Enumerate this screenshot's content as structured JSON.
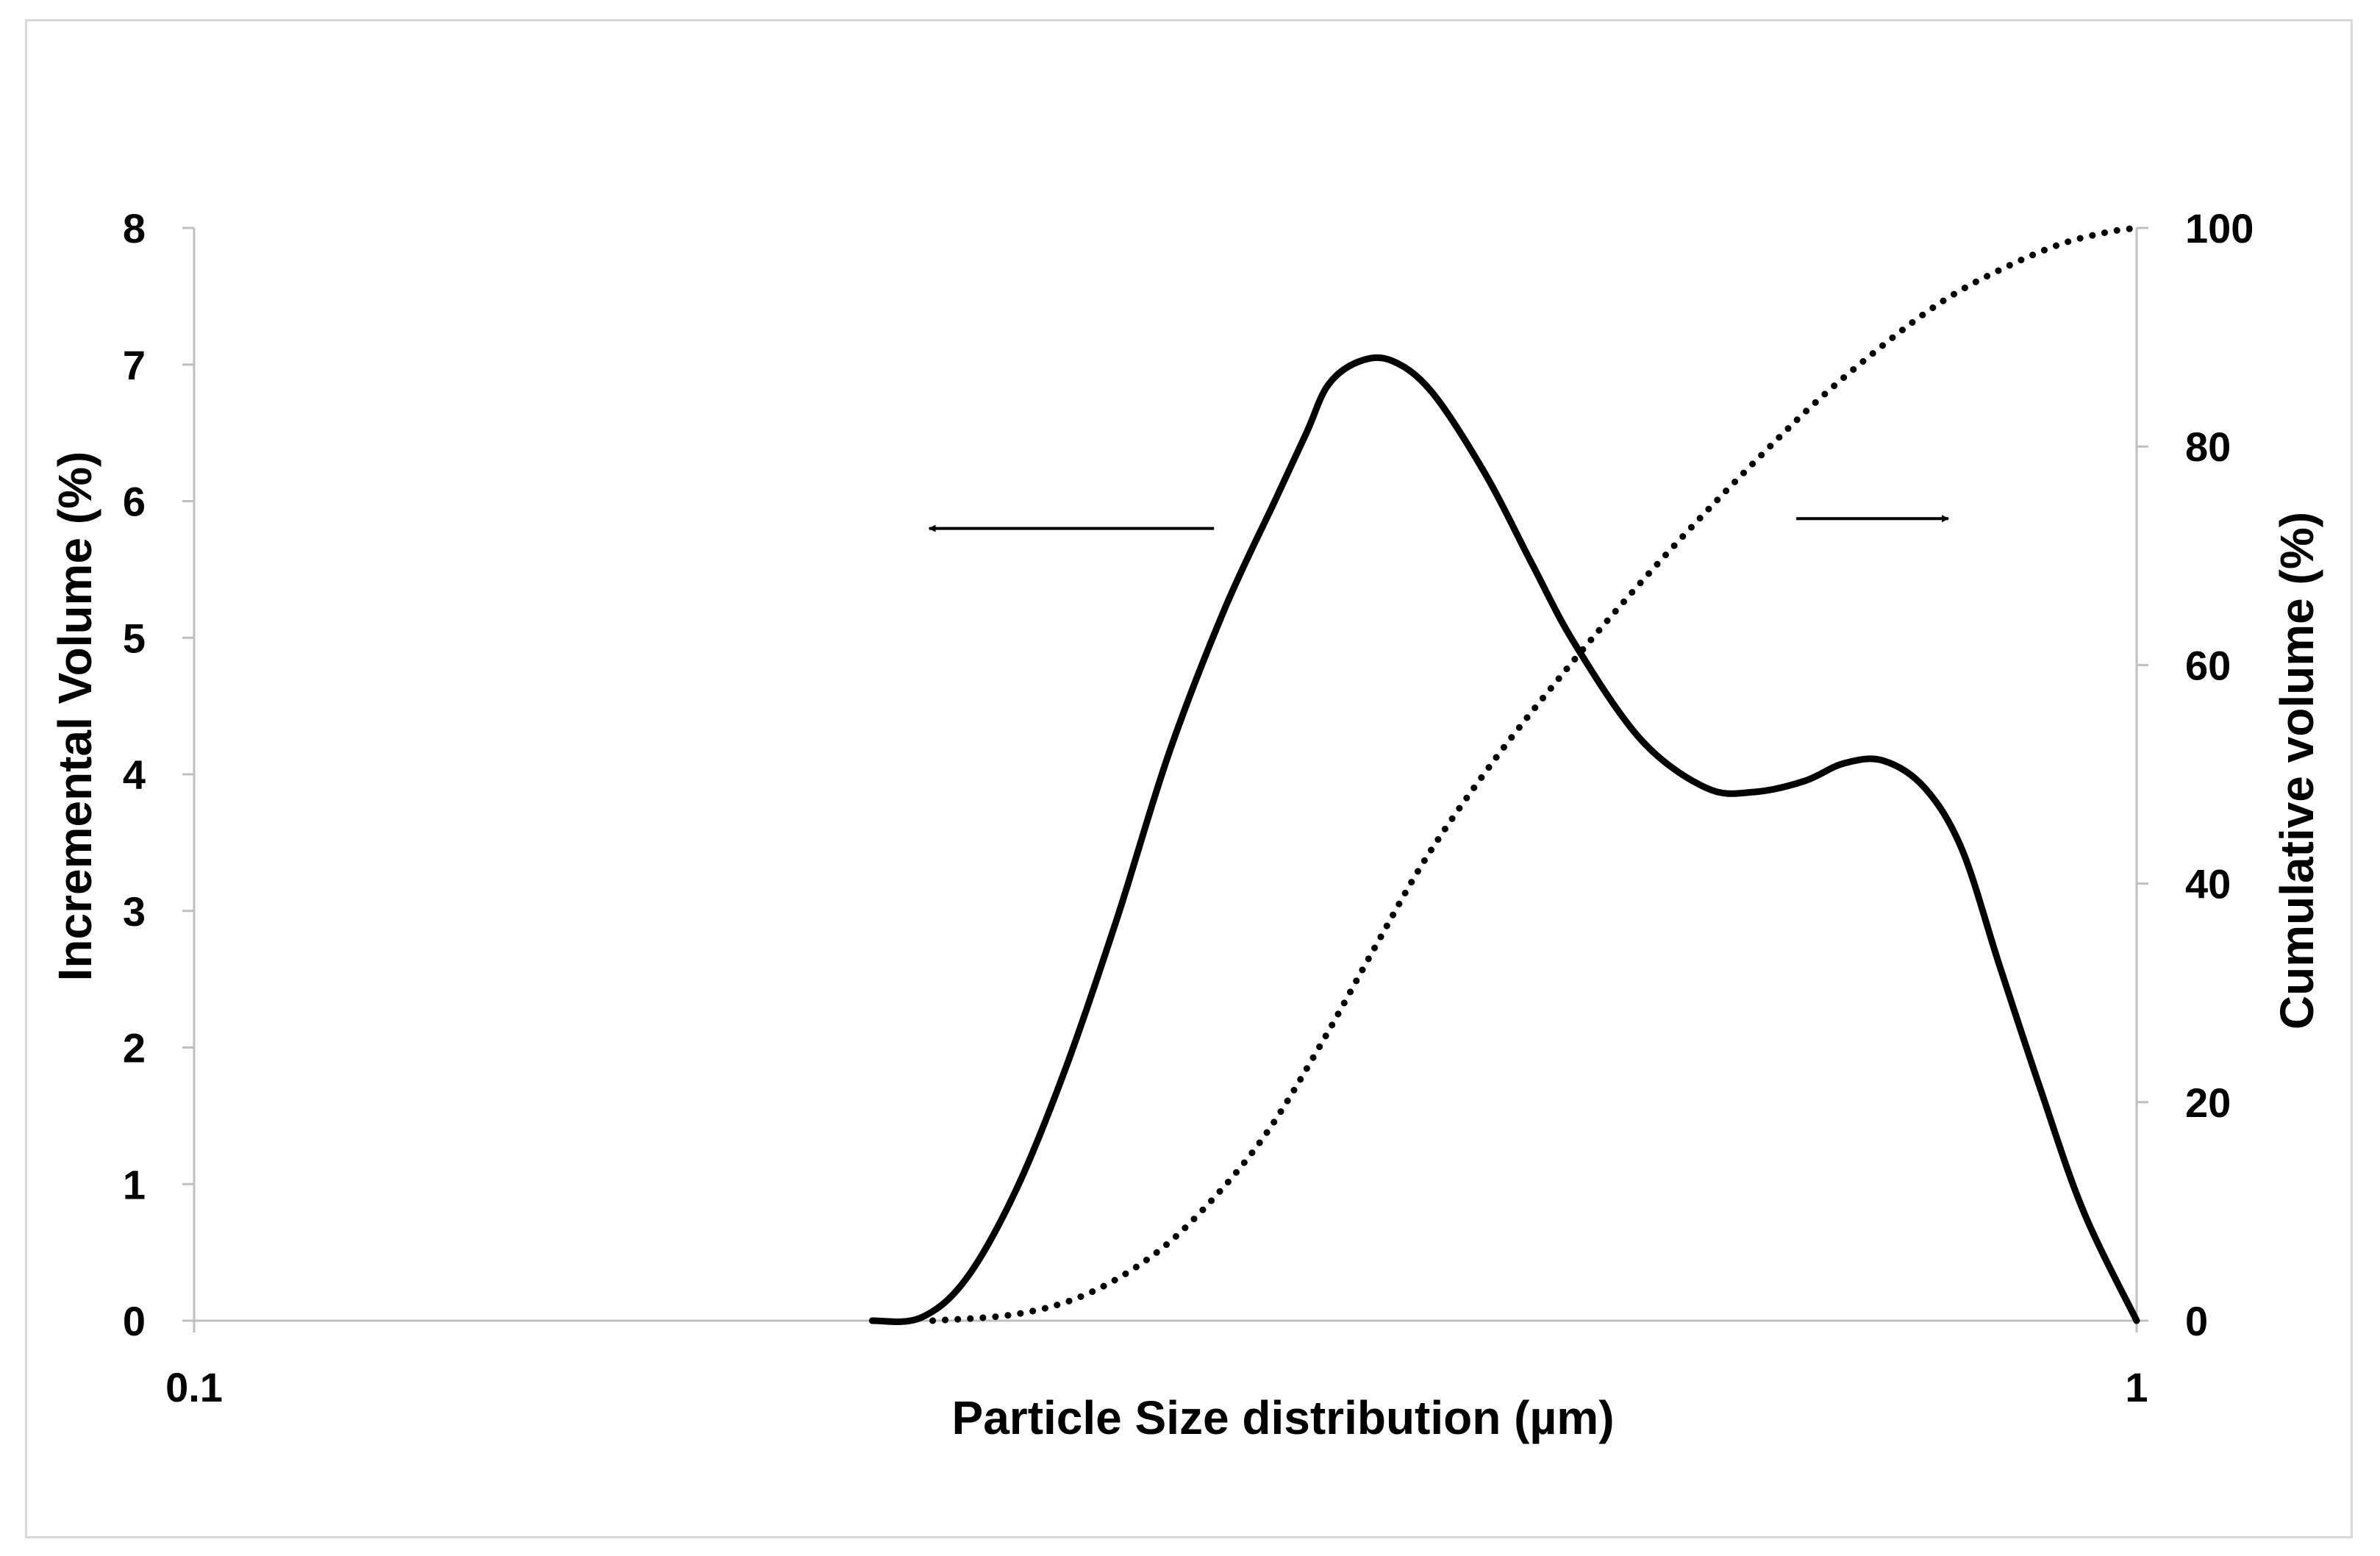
{
  "chart_data": {
    "type": "line",
    "title": "",
    "xlabel": "Particle Size distribution (µm)",
    "ylabel_left": "Incremental Volume (%)",
    "ylabel_right": "Cumulative volume (%)",
    "x_scale": "log",
    "xlim": [
      0.1,
      1
    ],
    "x_ticks": [
      "0.1",
      "1"
    ],
    "ylim_left": [
      0,
      8
    ],
    "y_ticks_left": [
      "0",
      "1",
      "2",
      "3",
      "4",
      "5",
      "6",
      "7",
      "8"
    ],
    "ylim_right": [
      0,
      100
    ],
    "y_ticks_right": [
      "0",
      "20",
      "40",
      "60",
      "80",
      "100"
    ],
    "grid": false,
    "legend": "none",
    "colors": {
      "line": "#000000",
      "axis": "#bfbfbf",
      "frame": "#d9d9d9"
    },
    "series": [
      {
        "style": "solid",
        "axis": "left",
        "x": [
          0.2234,
          0.2365,
          0.2495,
          0.2648,
          0.281,
          0.2987,
          0.3175,
          0.339,
          0.36,
          0.3738,
          0.3835,
          0.3975,
          0.4133,
          0.4336,
          0.462,
          0.488,
          0.514,
          0.556,
          0.6005,
          0.635,
          0.6743,
          0.7067,
          0.7405,
          0.778,
          0.813,
          0.85,
          0.892,
          0.939,
          1.0
        ],
        "y": [
          0.0,
          0.02,
          0.3,
          0.95,
          1.85,
          2.95,
          4.15,
          5.2,
          6.0,
          6.5,
          6.85,
          7.02,
          7.03,
          6.8,
          6.2,
          5.55,
          4.95,
          4.25,
          3.9,
          3.87,
          3.95,
          4.08,
          4.1,
          3.9,
          3.45,
          2.6,
          1.7,
          0.8,
          0.0
        ]
      },
      {
        "style": "dotted",
        "axis": "right",
        "x": [
          0.24,
          0.265,
          0.287,
          0.3095,
          0.33,
          0.355,
          0.38,
          0.4055,
          0.432,
          0.467,
          0.5054,
          0.547,
          0.592,
          0.64,
          0.69,
          0.753,
          0.803,
          0.856,
          0.913,
          0.965,
          1.0
        ],
        "y": [
          0.0,
          0.6,
          2.3,
          5.6,
          10.0,
          16.7,
          25.2,
          34.2,
          42.7,
          51.3,
          59.0,
          66.2,
          72.9,
          79.1,
          84.7,
          90.3,
          93.8,
          96.4,
          98.5,
          99.6,
          100.0
        ]
      }
    ],
    "annotations": [
      {
        "type": "arrow",
        "direction": "left",
        "points_to": "left-axis",
        "from": [
          0.335,
          5.8
        ],
        "to": [
          0.239,
          5.8
        ]
      },
      {
        "type": "arrow",
        "direction": "right",
        "points_to": "right-axis",
        "from": [
          0.668,
          73.4
        ],
        "to": [
          0.8,
          73.4
        ]
      }
    ]
  }
}
